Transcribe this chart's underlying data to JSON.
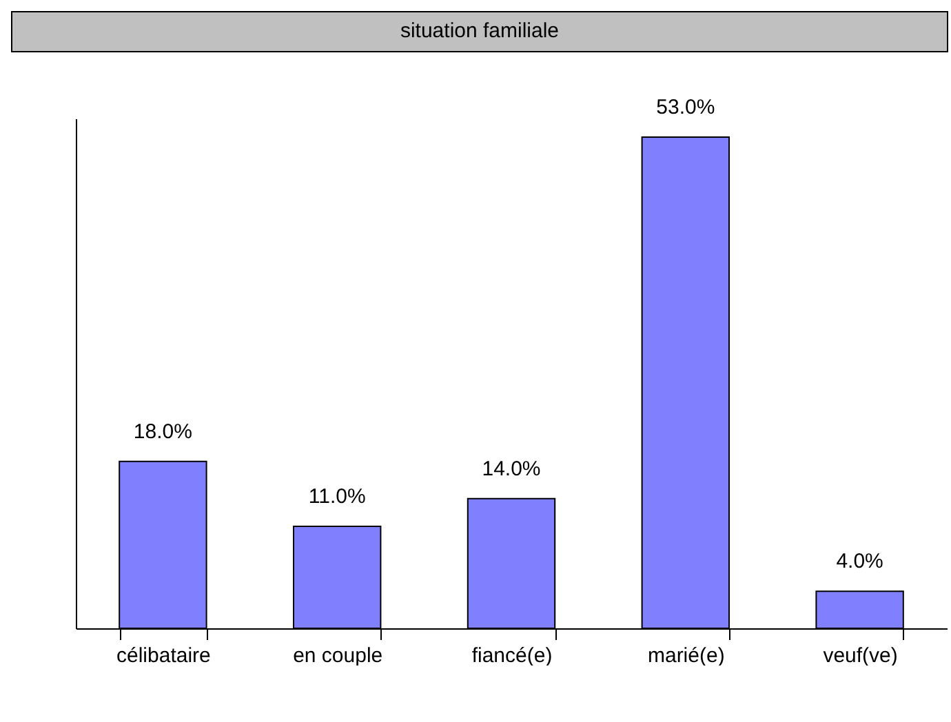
{
  "chart_data": {
    "type": "bar",
    "title": "situation familiale",
    "categories": [
      "célibataire",
      "en couple",
      "fiancé(e)",
      "marié(e)",
      "veuf(ve)"
    ],
    "values": [
      18.0,
      11.0,
      14.0,
      53.0,
      4.0
    ],
    "value_labels": [
      "18.0%",
      "11.0%",
      "14.0%",
      "53.0%",
      "4.0%"
    ],
    "color": "#8080ff",
    "grid": false,
    "tick_labels": "x"
  }
}
